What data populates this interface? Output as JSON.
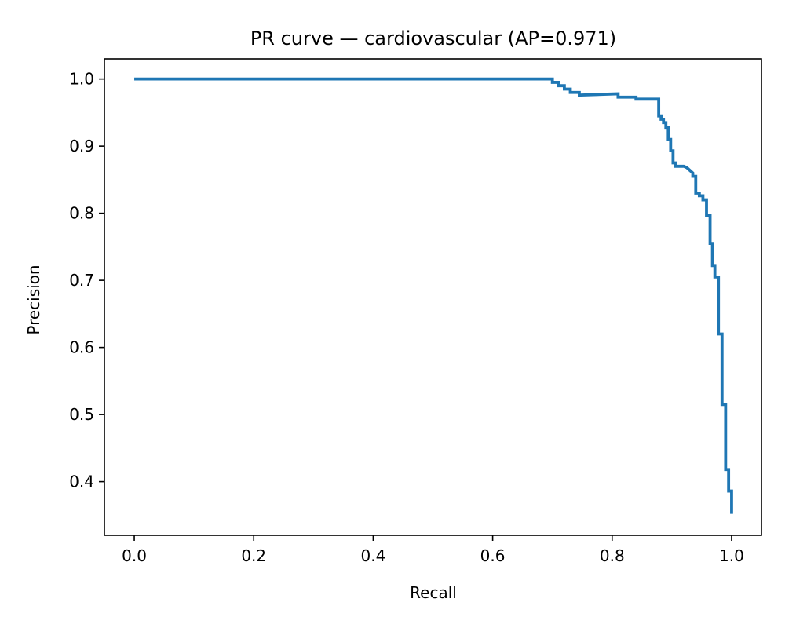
{
  "chart_data": {
    "type": "line",
    "title": "PR curve — cardiovascular (AP=0.971)",
    "xlabel": "Recall",
    "ylabel": "Precision",
    "xlim": [
      -0.05,
      1.05
    ],
    "ylim": [
      0.32,
      1.03
    ],
    "xticks": [
      0.0,
      0.2,
      0.4,
      0.6,
      0.8,
      1.0
    ],
    "xtick_labels": [
      "0.0",
      "0.2",
      "0.4",
      "0.6",
      "0.8",
      "1.0"
    ],
    "yticks": [
      0.4,
      0.5,
      0.6,
      0.7,
      0.8,
      0.9,
      1.0
    ],
    "ytick_labels": [
      "0.4",
      "0.5",
      "0.6",
      "0.7",
      "0.8",
      "0.9",
      "1.0"
    ],
    "grid": false,
    "line_color": "#1f77b4",
    "series": [
      {
        "x": [
          0.0,
          0.7,
          0.7,
          0.71,
          0.71,
          0.72,
          0.72,
          0.73,
          0.73,
          0.745,
          0.745,
          0.81,
          0.81,
          0.84,
          0.84,
          0.878,
          0.878,
          0.882,
          0.882,
          0.886,
          0.886,
          0.89,
          0.89,
          0.894,
          0.894,
          0.898,
          0.898,
          0.902,
          0.902,
          0.906,
          0.906,
          0.92,
          0.925,
          0.93,
          0.935,
          0.935,
          0.94,
          0.94,
          0.946,
          0.946,
          0.952,
          0.952,
          0.958,
          0.958,
          0.964,
          0.964,
          0.968,
          0.968,
          0.972,
          0.972,
          0.978,
          0.978,
          0.984,
          0.984,
          0.99,
          0.99,
          0.995,
          0.995,
          1.0,
          1.0
        ],
        "y": [
          1.0,
          1.0,
          0.995,
          0.995,
          0.99,
          0.99,
          0.985,
          0.985,
          0.98,
          0.98,
          0.976,
          0.978,
          0.973,
          0.973,
          0.97,
          0.97,
          0.945,
          0.945,
          0.94,
          0.94,
          0.935,
          0.935,
          0.928,
          0.928,
          0.91,
          0.91,
          0.893,
          0.893,
          0.875,
          0.875,
          0.87,
          0.87,
          0.868,
          0.864,
          0.86,
          0.855,
          0.855,
          0.83,
          0.83,
          0.826,
          0.826,
          0.82,
          0.82,
          0.797,
          0.797,
          0.755,
          0.755,
          0.722,
          0.722,
          0.705,
          0.705,
          0.62,
          0.62,
          0.515,
          0.515,
          0.418,
          0.418,
          0.386,
          0.386,
          0.352
        ]
      }
    ]
  }
}
